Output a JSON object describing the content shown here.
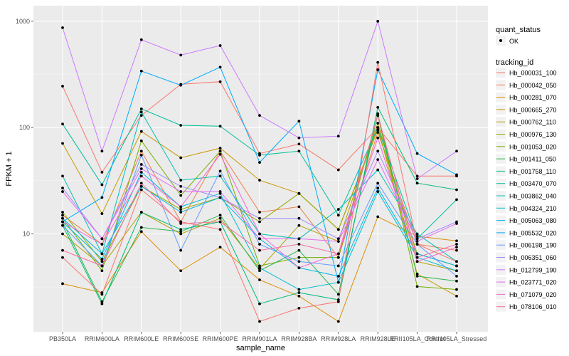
{
  "chart_data": {
    "type": "line",
    "xlabel": "sample_name",
    "ylabel": "FPKM + 1",
    "y_scale": "log10",
    "ylim": [
      1.2,
      1400
    ],
    "y_ticks": [
      10,
      100,
      1000
    ],
    "y_tick_labels": [
      "10",
      "100",
      "1000"
    ],
    "grid": true,
    "legend_position": "right",
    "categories": [
      "PB350LA",
      "RRIM600LA",
      "RRIM600LE",
      "RRIM600SE",
      "RRIM600PE",
      "RRIM901LA",
      "RRIM928BA",
      "RRIM928LA",
      "RRIM928LE",
      "RRII105LA_Control",
      "RRII105LA_Stressed"
    ],
    "legend_shape": {
      "title": "quant_status",
      "label": "OK"
    },
    "legend_color": {
      "title": "tracking_id"
    },
    "series": [
      {
        "name": "Hb_000031_100",
        "color": "#F8766D",
        "values": [
          245,
          38,
          130,
          255,
          270,
          57,
          70,
          40,
          100,
          35,
          35
        ]
      },
      {
        "name": "Hb_000042_050",
        "color": "#EE7F4A",
        "values": [
          15,
          8,
          60,
          13,
          60,
          16,
          18,
          6,
          90,
          8,
          7
        ]
      },
      {
        "name": "Hb_000281_070",
        "color": "#DD8D00",
        "values": [
          3.4,
          2.8,
          10.5,
          4.5,
          7.5,
          3.7,
          2.6,
          1.5,
          14.5,
          9.5,
          8.6
        ]
      },
      {
        "name": "Hb_000665_270",
        "color": "#C99800",
        "values": [
          71,
          15.5,
          92,
          52,
          64,
          32,
          24,
          11,
          100,
          4.2,
          2.6
        ]
      },
      {
        "name": "Hb_000762_110",
        "color": "#B2A000",
        "values": [
          10,
          5,
          16,
          10,
          14,
          4.7,
          12,
          8.5,
          110,
          5.5,
          4.5
        ]
      },
      {
        "name": "Hb_000976_130",
        "color": "#96A900",
        "values": [
          16,
          5.5,
          28,
          17,
          22,
          13,
          24,
          11,
          95,
          6.5,
          5
        ]
      },
      {
        "name": "Hb_001053_020",
        "color": "#72B000",
        "values": [
          14,
          4.5,
          75,
          23,
          60,
          5,
          6,
          6,
          130,
          3.2,
          3
        ]
      },
      {
        "name": "Hb_001411_050",
        "color": "#2BB64C",
        "values": [
          13,
          2.3,
          11.5,
          10.5,
          15,
          4.5,
          7,
          2.7,
          135,
          4,
          3.6
        ]
      },
      {
        "name": "Hb_001758_110",
        "color": "#00BC76",
        "values": [
          12,
          2.2,
          16,
          11,
          13,
          2.2,
          2.8,
          2.4,
          155,
          30,
          26
        ]
      },
      {
        "name": "Hb_003470_070",
        "color": "#00BF97",
        "values": [
          108,
          29,
          150,
          105,
          103,
          55,
          60,
          15,
          100,
          9,
          21
        ]
      },
      {
        "name": "Hb_003862_040",
        "color": "#00C0B5",
        "values": [
          35,
          6.5,
          140,
          32,
          35,
          10,
          9,
          17,
          40,
          10,
          5.5
        ]
      },
      {
        "name": "Hb_004324_210",
        "color": "#00BED0",
        "values": [
          13,
          5.8,
          38,
          18,
          24,
          4.8,
          3,
          3.5,
          25,
          6,
          4.5
        ]
      },
      {
        "name": "Hb_005063_080",
        "color": "#00B7E8",
        "values": [
          14,
          6.5,
          28,
          16,
          22,
          9,
          4.8,
          4,
          27,
          6.5,
          5
        ]
      },
      {
        "name": "Hb_005532_020",
        "color": "#00ABFB",
        "values": [
          13,
          22,
          340,
          250,
          370,
          47,
          115,
          3.5,
          350,
          57,
          36
        ]
      },
      {
        "name": "Hb_006198_190",
        "color": "#619CFF",
        "values": [
          12,
          5,
          55,
          7,
          39,
          8,
          5.5,
          5,
          30,
          8,
          4
        ]
      },
      {
        "name": "Hb_006351_060",
        "color": "#A58AFF",
        "values": [
          27,
          9,
          45,
          28,
          22,
          14,
          14,
          9,
          60,
          9,
          13
        ]
      },
      {
        "name": "Hb_012799_190",
        "color": "#CC79FF",
        "values": [
          870,
          60,
          670,
          480,
          590,
          130,
          80,
          83,
          1000,
          33,
          60
        ]
      },
      {
        "name": "Hb_023771_020",
        "color": "#E76BF3",
        "values": [
          25,
          9,
          41,
          25,
          25,
          9,
          9,
          8.5,
          50,
          8.5,
          12.5
        ]
      },
      {
        "name": "Hb_071079_020",
        "color": "#F665D4",
        "values": [
          13,
          8,
          35,
          18,
          56,
          10,
          4.8,
          6.5,
          80,
          5.5,
          7.5
        ]
      },
      {
        "name": "Hb_078106_010",
        "color": "#FD6BA3",
        "values": [
          7,
          5,
          30,
          12.5,
          13,
          7,
          8,
          6.5,
          130,
          6,
          8
        ]
      },
      {
        "name": "",
        "color": "#F8766D",
        "values": [
          6,
          2.7,
          26,
          13,
          11,
          1.5,
          2,
          2.3,
          410,
          8,
          5.5
        ]
      }
    ]
  }
}
